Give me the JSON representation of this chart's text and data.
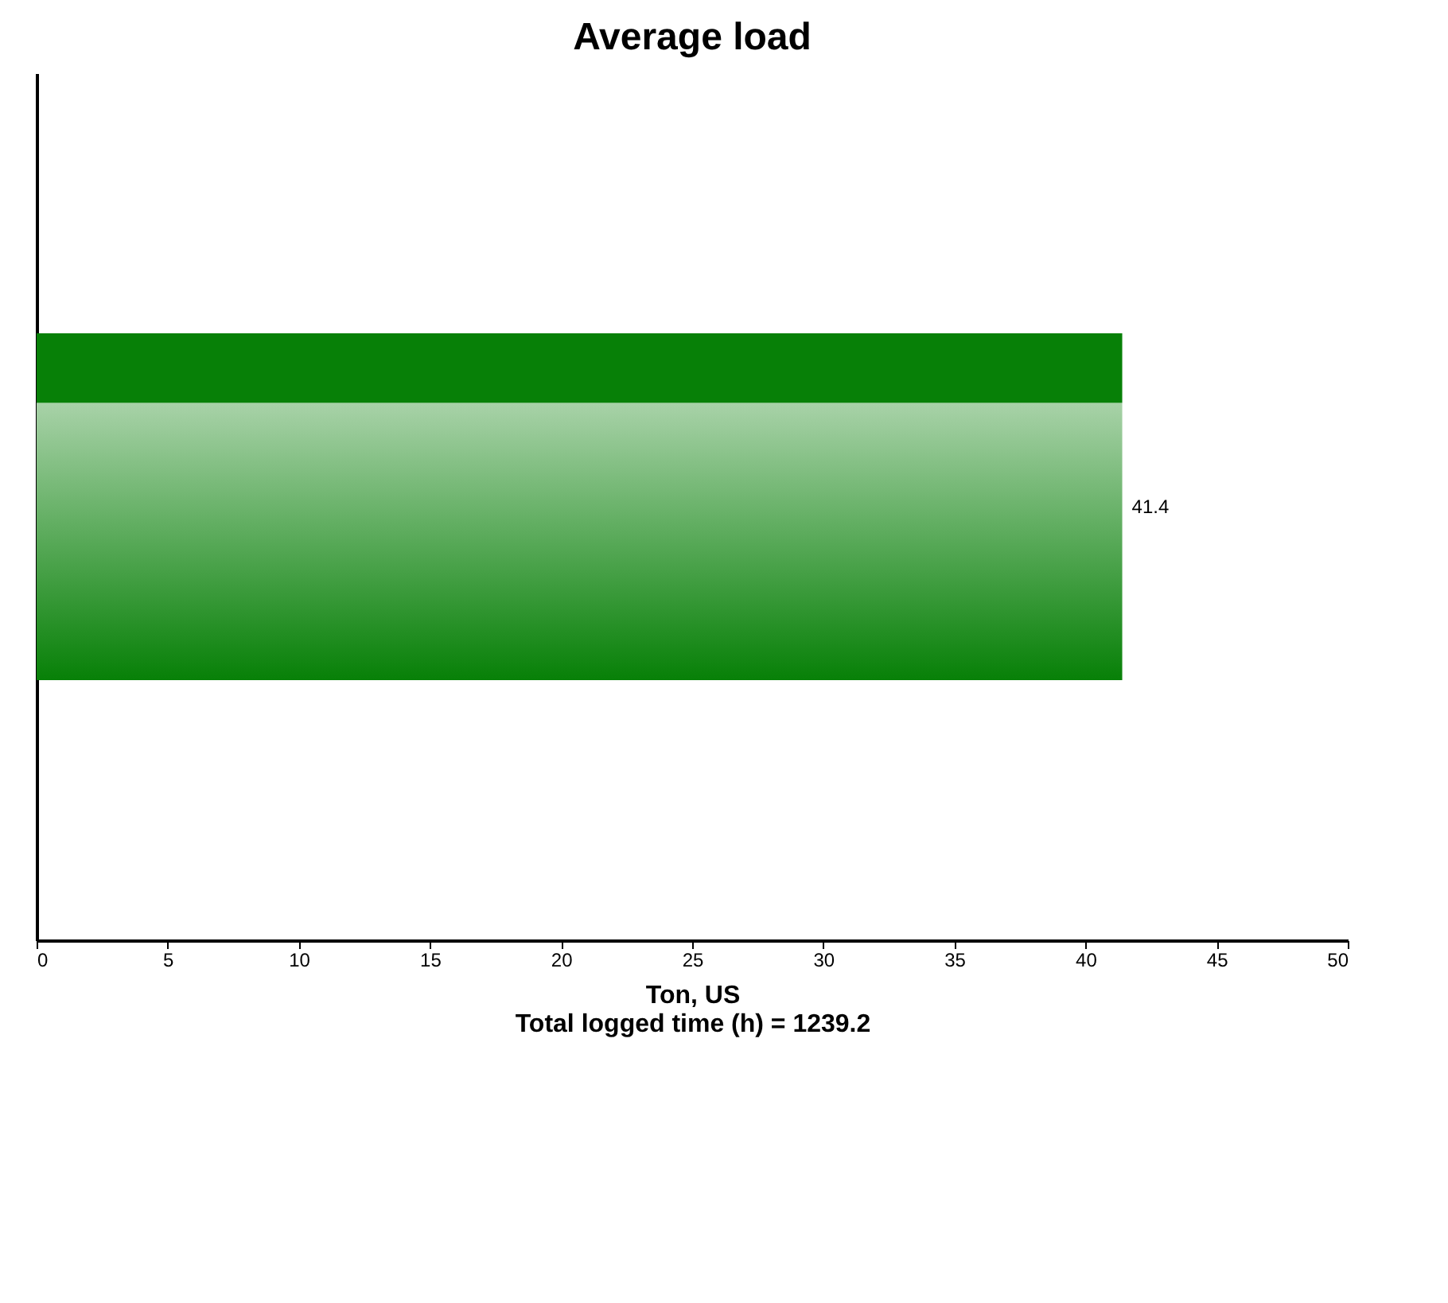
{
  "chart_data": {
    "type": "bar",
    "orientation": "horizontal",
    "title": "Average load",
    "xlabel": "Ton, US",
    "annotations": [
      "Total logged time (h) = 1239.2"
    ],
    "categories": [
      null
    ],
    "values": [
      41.4
    ],
    "color": "#078007",
    "xlim": [
      0,
      50
    ],
    "xticks": [
      0,
      5,
      10,
      15,
      20,
      25,
      30,
      35,
      40,
      45,
      50
    ],
    "grid": false,
    "tick_labels": "x",
    "data_labels": true
  }
}
